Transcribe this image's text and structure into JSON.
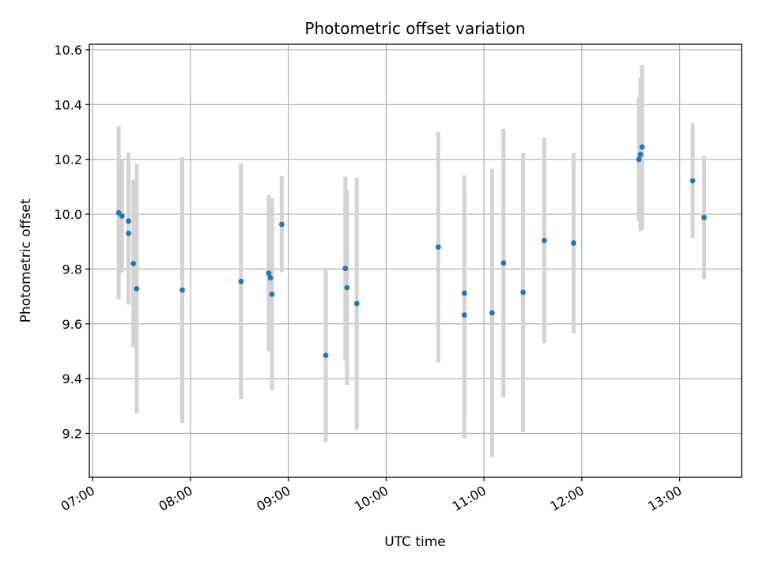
{
  "chart_data": {
    "type": "scatter",
    "title": "Photometric offset variation",
    "xlabel": "UTC time",
    "ylabel": "Photometric offset",
    "x_ticks": [
      "07:00",
      "08:00",
      "09:00",
      "10:00",
      "11:00",
      "12:00",
      "13:00"
    ],
    "y_ticks": [
      "9.2",
      "9.4",
      "9.6",
      "9.8",
      "10.0",
      "10.2",
      "10.4",
      "10.6"
    ],
    "xlim": [
      "06:58",
      "13:38"
    ],
    "ylim": [
      9.04,
      10.62
    ],
    "grid": true,
    "colors": {
      "marker": "#1f77b4",
      "errorbar": "#d3d3d3",
      "grid": "#b0b0b0"
    },
    "points": [
      {
        "time": "07:16",
        "y": 10.005,
        "err": 0.315
      },
      {
        "time": "07:18",
        "y": 9.993,
        "err": 0.205
      },
      {
        "time": "07:22",
        "y": 9.975,
        "err": 0.25
      },
      {
        "time": "07:22",
        "y": 9.93,
        "err": 0.26
      },
      {
        "time": "07:25",
        "y": 9.82,
        "err": 0.305
      },
      {
        "time": "07:27",
        "y": 9.728,
        "err": 0.455
      },
      {
        "time": "07:55",
        "y": 9.723,
        "err": 0.485
      },
      {
        "time": "08:31",
        "y": 9.755,
        "err": 0.43
      },
      {
        "time": "08:48",
        "y": 9.785,
        "err": 0.285
      },
      {
        "time": "08:49",
        "y": 9.768,
        "err": 0.27
      },
      {
        "time": "08:50",
        "y": 9.708,
        "err": 0.35
      },
      {
        "time": "08:56",
        "y": 9.963,
        "err": 0.175
      },
      {
        "time": "09:23",
        "y": 9.485,
        "err": 0.315
      },
      {
        "time": "09:35",
        "y": 9.802,
        "err": 0.335
      },
      {
        "time": "09:36",
        "y": 9.732,
        "err": 0.355
      },
      {
        "time": "09:42",
        "y": 9.674,
        "err": 0.46
      },
      {
        "time": "10:32",
        "y": 9.88,
        "err": 0.42
      },
      {
        "time": "10:48",
        "y": 9.712,
        "err": 0.43
      },
      {
        "time": "10:48",
        "y": 9.632,
        "err": 0.45
      },
      {
        "time": "11:05",
        "y": 9.64,
        "err": 0.525
      },
      {
        "time": "11:12",
        "y": 9.822,
        "err": 0.49
      },
      {
        "time": "11:24",
        "y": 9.715,
        "err": 0.51
      },
      {
        "time": "11:37",
        "y": 9.904,
        "err": 0.375
      },
      {
        "time": "11:55",
        "y": 9.895,
        "err": 0.33
      },
      {
        "time": "12:35",
        "y": 10.2,
        "err": 0.225
      },
      {
        "time": "12:36",
        "y": 10.218,
        "err": 0.28
      },
      {
        "time": "12:37",
        "y": 10.245,
        "err": 0.3
      },
      {
        "time": "13:08",
        "y": 10.122,
        "err": 0.21
      },
      {
        "time": "13:15",
        "y": 9.988,
        "err": 0.225
      }
    ]
  }
}
